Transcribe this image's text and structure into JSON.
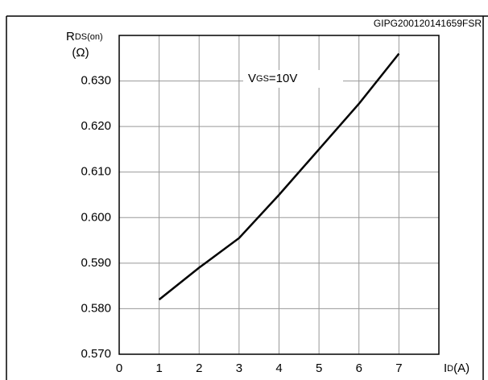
{
  "chart_data": {
    "type": "line",
    "code": "GIPG200120141659FSR",
    "ylabel": {
      "symbol": "R",
      "subscript": "DS(on)",
      "unit": "(Ω)"
    },
    "xlabel": {
      "symbol": "I",
      "subscript": "D",
      "unit": "(A)"
    },
    "annotation": {
      "symbol": "V",
      "subscript": "GS",
      "text": "=10V"
    },
    "x": [
      1,
      2,
      3,
      4,
      5,
      6,
      7
    ],
    "series": [
      {
        "color": "#000000",
        "values": [
          0.582,
          0.589,
          0.5955,
          0.605,
          0.615,
          0.625,
          0.636
        ]
      }
    ],
    "xlim": [
      0,
      8
    ],
    "xticks": [
      0,
      1,
      2,
      3,
      4,
      5,
      6,
      7
    ],
    "ylim": [
      0.57,
      0.64
    ],
    "yticks": [
      {
        "value": 0.57,
        "label": "0.570"
      },
      {
        "value": 0.58,
        "label": "0.580"
      },
      {
        "value": 0.59,
        "label": "0.590"
      },
      {
        "value": 0.6,
        "label": "0.600"
      },
      {
        "value": 0.61,
        "label": "0.610"
      },
      {
        "value": 0.62,
        "label": "0.620"
      },
      {
        "value": 0.63,
        "label": "0.630"
      }
    ],
    "grid": true
  }
}
